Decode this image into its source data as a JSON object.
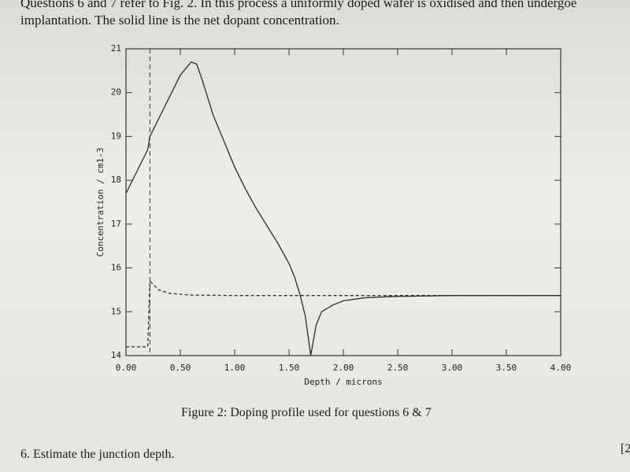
{
  "header": {
    "lines": [
      "Questions 6 and 7 refer to Fig. 2. In this process a uniformly doped wafer is oxidised and then undergoe",
      "implantation. The solid line is the net dopant concentration."
    ]
  },
  "chart_data": {
    "type": "line",
    "x_label": "Depth / microns",
    "y_label": "Concentration / cm1-3",
    "xlim": [
      0,
      4.0
    ],
    "ylim": [
      14,
      21
    ],
    "xticks": [
      {
        "value": 0,
        "label": "0.00"
      },
      {
        "value": 0.5,
        "label": "0.50"
      },
      {
        "value": 1.0,
        "label": "1.00"
      },
      {
        "value": 1.5,
        "label": "1.50"
      },
      {
        "value": 2.0,
        "label": "2.00"
      },
      {
        "value": 2.5,
        "label": "2.50"
      },
      {
        "value": 3.0,
        "label": "3.00"
      },
      {
        "value": 3.5,
        "label": "3.50"
      },
      {
        "value": 4.0,
        "label": "4.00"
      }
    ],
    "yticks": [
      14,
      15,
      16,
      17,
      18,
      19,
      20,
      21
    ],
    "vlines": [
      0.22
    ],
    "series": [
      {
        "color": "#2a2a2a",
        "style": "solid",
        "x": [
          0,
          0.1,
          0.2,
          0.22,
          0.3,
          0.4,
          0.5,
          0.6,
          0.65,
          0.7,
          0.8,
          0.9,
          1.0,
          1.1,
          1.2,
          1.3,
          1.4,
          1.5,
          1.55,
          1.6,
          1.65,
          1.7,
          1.75,
          1.8,
          1.9,
          2.0,
          2.2,
          2.5,
          3.0,
          3.5,
          4.0
        ],
        "values": [
          17.7,
          18.2,
          18.7,
          19.0,
          19.4,
          19.9,
          20.4,
          20.7,
          20.65,
          20.3,
          19.5,
          18.9,
          18.3,
          17.8,
          17.35,
          16.95,
          16.55,
          16.1,
          15.8,
          15.4,
          14.9,
          14.0,
          14.7,
          15.0,
          15.15,
          15.25,
          15.32,
          15.35,
          15.37,
          15.37,
          15.37
        ]
      },
      {
        "color": "#2a2a2a",
        "style": "dashed",
        "x": [
          0,
          0.2,
          0.22,
          0.3,
          0.4,
          0.6,
          1.0,
          4.0
        ],
        "values": [
          14.2,
          14.2,
          15.7,
          15.5,
          15.42,
          15.38,
          15.37,
          15.37
        ]
      }
    ]
  },
  "caption": "Figure 2: Doping profile used for questions 6 & 7",
  "question": "6. Estimate the junction depth.",
  "mark": "[2"
}
